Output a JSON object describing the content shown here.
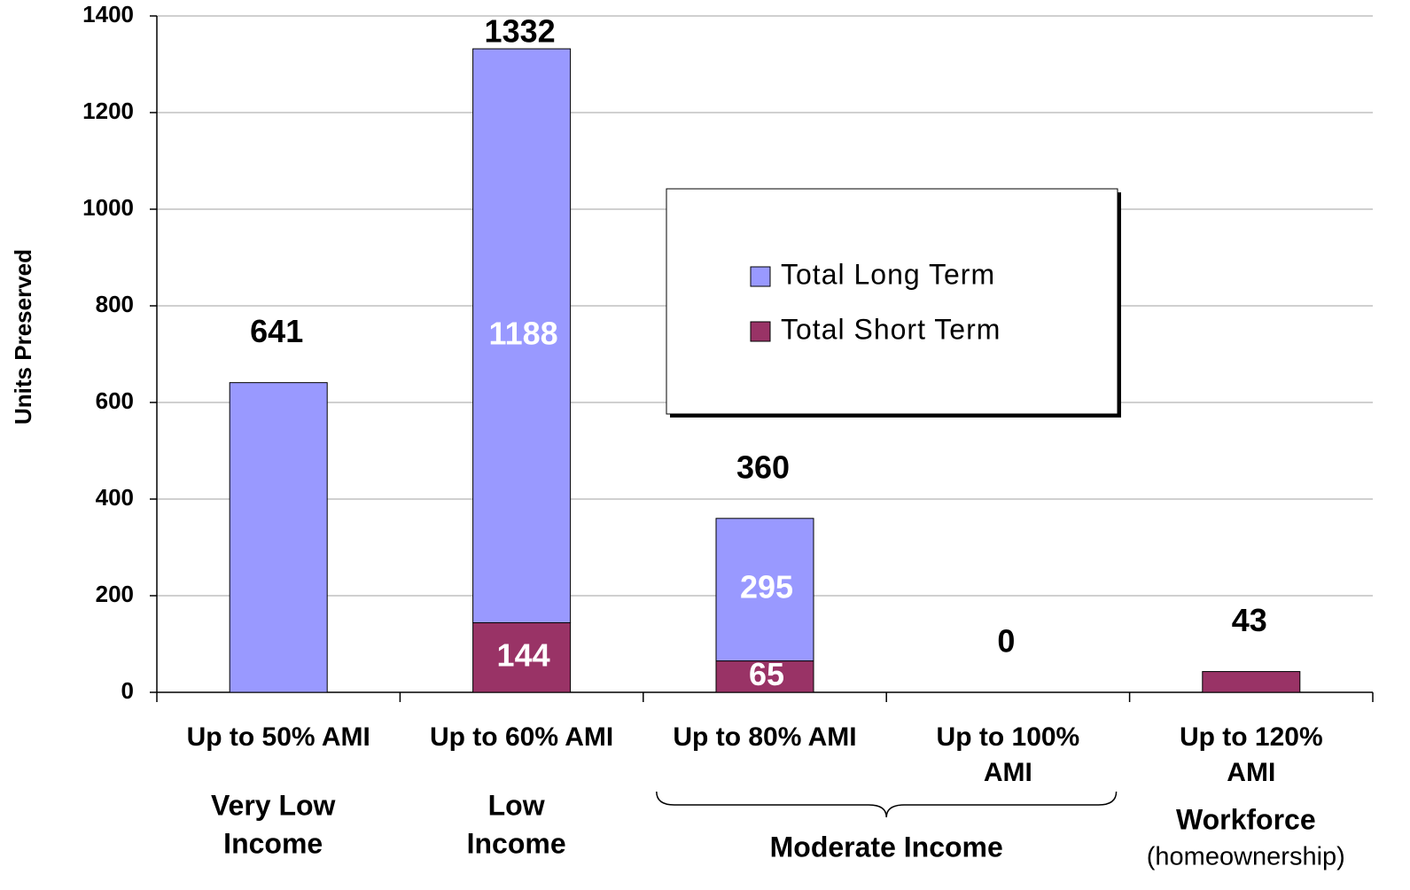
{
  "chart_data": {
    "type": "stacked_bar",
    "y_label": "Units Preserved",
    "categories": [
      [
        "Up to 50% AMI"
      ],
      [
        "Up to 60% AMI"
      ],
      [
        "Up to 80% AMI"
      ],
      [
        "Up to 100%",
        "AMI"
      ],
      [
        "Up to 120%",
        "AMI"
      ]
    ],
    "series": [
      {
        "name": "Total Long Term",
        "color": "#9999ff",
        "values": [
          641,
          1188,
          295,
          0,
          0
        ],
        "value_labels": [
          null,
          1188,
          295,
          null,
          null
        ]
      },
      {
        "name": "Total Short Term",
        "color": "#993366",
        "values": [
          0,
          144,
          65,
          0,
          43
        ],
        "value_labels": [
          null,
          144,
          65,
          null,
          null
        ]
      }
    ],
    "totals": [
      641,
      1332,
      360,
      0,
      43
    ],
    "groups": [
      {
        "lines": [
          "Very Low",
          "Income"
        ],
        "from": 0,
        "to": 0
      },
      {
        "lines": [
          "Low",
          "Income"
        ],
        "from": 1,
        "to": 1
      },
      {
        "lines": [
          "Moderate Income"
        ],
        "from": 2,
        "to": 3,
        "brace": true
      },
      {
        "lines": [
          "Workforce",
          "(homeownership)"
        ],
        "from": 4,
        "to": 4
      }
    ],
    "ylim": [
      0,
      1400
    ],
    "yticks": [
      0,
      200,
      400,
      600,
      800,
      1000,
      1200,
      1400
    ],
    "grid": true,
    "legend": "center"
  }
}
